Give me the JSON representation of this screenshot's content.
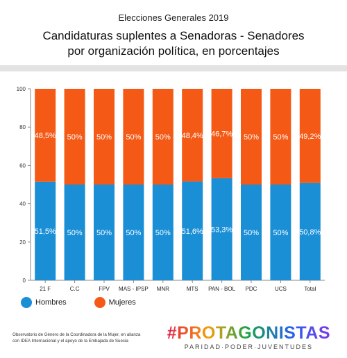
{
  "header": {
    "supertitle": "Elecciones Generales 2019",
    "title_line1": "Candidaturas suplentes a Senadoras - Senadores",
    "title_line2": "por organización política, en porcentajes"
  },
  "legend": {
    "men_label": "Hombres",
    "women_label": "Mujeres"
  },
  "footer": {
    "source_line1": "Observatorio de Género de la Coordinadora de la Mujer, en alianza",
    "source_line2": "con IDEA Internacional y el apoyo de la Embajada de Suecia",
    "brand": "#PROTAGONISTAS",
    "brand_tagline": "PARIDAD·PODER·JUVENTUDES"
  },
  "colors": {
    "men": "#1a8fd6",
    "women": "#f45a16",
    "background": "#ffffff",
    "divider": "#e3e3e3"
  },
  "chart_data": {
    "type": "bar",
    "stacked": true,
    "categories": [
      "21 F",
      "C.C",
      "FPV",
      "MAS - IPSP",
      "MNR",
      "MTS",
      "PAN - BOL",
      "PDC",
      "UCS",
      "Total"
    ],
    "series": [
      {
        "name": "Hombres",
        "values": [
          51.5,
          50,
          50,
          50,
          50,
          51.6,
          53.3,
          50,
          50,
          50.8
        ],
        "labels": [
          "51,5%",
          "50%",
          "50%",
          "50%",
          "50%",
          "51,6%",
          "53,3%",
          "50%",
          "50%",
          "50,8%"
        ]
      },
      {
        "name": "Mujeres",
        "values": [
          48.5,
          50,
          50,
          50,
          50,
          48.4,
          46.7,
          50,
          50,
          49.2
        ],
        "labels": [
          "48,5%",
          "50%",
          "50%",
          "50%",
          "50%",
          "48,4%",
          "46,7%",
          "50%",
          "50%",
          "49,2%"
        ]
      }
    ],
    "ylim": [
      0,
      100
    ],
    "yticks": [
      0,
      20,
      40,
      60,
      80,
      100
    ],
    "title": "",
    "xlabel": "",
    "ylabel": "",
    "grid": false,
    "legend_position": "bottom-left"
  }
}
